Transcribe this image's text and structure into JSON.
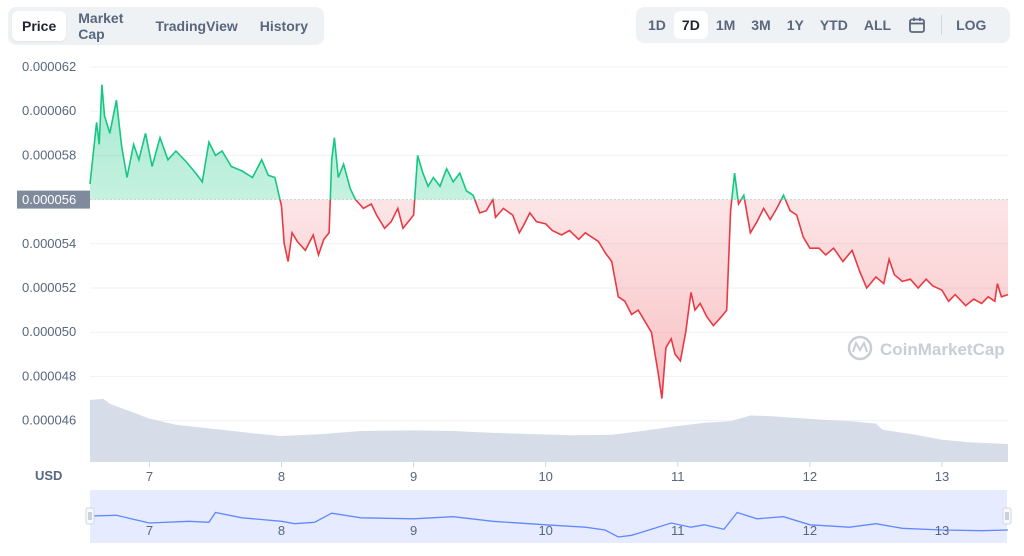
{
  "tabs": [
    {
      "label": "Price",
      "active": true
    },
    {
      "label": "Market Cap",
      "active": false
    },
    {
      "label": "TradingView",
      "active": false
    },
    {
      "label": "History",
      "active": false
    }
  ],
  "ranges": [
    {
      "label": "1D",
      "active": false
    },
    {
      "label": "7D",
      "active": true
    },
    {
      "label": "1M",
      "active": false
    },
    {
      "label": "3M",
      "active": false
    },
    {
      "label": "1Y",
      "active": false
    },
    {
      "label": "YTD",
      "active": false
    },
    {
      "label": "ALL",
      "active": false
    }
  ],
  "calendar_icon": "calendar-icon",
  "log_label": "LOG",
  "currency_label": "USD",
  "watermark": "CoinMarketCap",
  "colors": {
    "up": "#16c784",
    "down": "#ea3943",
    "volume": "#cfd6e4",
    "navigator_line": "#6188ff",
    "navigator_fill": "#e6ebff",
    "reference": "#808a9d"
  },
  "chart_data": {
    "type": "line",
    "currency": "USD",
    "reference_price_label": "0.000056",
    "reference_price": 5.6e-05,
    "ylim": [
      4.45e-05,
      6.2e-05
    ],
    "y_ticks": [
      "0.000062",
      "0.000060",
      "0.000058",
      "0.000056",
      "0.000054",
      "0.000052",
      "0.000050",
      "0.000048",
      "0.000046"
    ],
    "xlim": [
      6.55,
      13.5
    ],
    "x_ticks": [
      {
        "value": 7,
        "label": "7"
      },
      {
        "value": 8,
        "label": "8"
      },
      {
        "value": 9,
        "label": "9"
      },
      {
        "value": 10,
        "label": "10"
      },
      {
        "value": 11,
        "label": "11"
      },
      {
        "value": 12,
        "label": "12"
      },
      {
        "value": 13,
        "label": "13"
      }
    ],
    "series": [
      {
        "kind": "price",
        "points": [
          [
            6.55,
            5.67e-05
          ],
          [
            6.6,
            5.95e-05
          ],
          [
            6.62,
            5.85e-05
          ],
          [
            6.64,
            6.12e-05
          ],
          [
            6.66,
            5.98e-05
          ],
          [
            6.7,
            5.9e-05
          ],
          [
            6.75,
            6.05e-05
          ],
          [
            6.79,
            5.84e-05
          ],
          [
            6.83,
            5.7e-05
          ],
          [
            6.88,
            5.85e-05
          ],
          [
            6.92,
            5.78e-05
          ],
          [
            6.97,
            5.9e-05
          ],
          [
            7.02,
            5.75e-05
          ],
          [
            7.08,
            5.88e-05
          ],
          [
            7.14,
            5.78e-05
          ],
          [
            7.2,
            5.82e-05
          ],
          [
            7.28,
            5.77e-05
          ],
          [
            7.35,
            5.72e-05
          ],
          [
            7.4,
            5.68e-05
          ],
          [
            7.45,
            5.86e-05
          ],
          [
            7.5,
            5.8e-05
          ],
          [
            7.55,
            5.82e-05
          ],
          [
            7.62,
            5.75e-05
          ],
          [
            7.7,
            5.73e-05
          ],
          [
            7.78,
            5.7e-05
          ],
          [
            7.85,
            5.78e-05
          ],
          [
            7.9,
            5.71e-05
          ],
          [
            7.95,
            5.7e-05
          ],
          [
            8.0,
            5.57e-05
          ],
          [
            8.02,
            5.4e-05
          ],
          [
            8.05,
            5.32e-05
          ],
          [
            8.08,
            5.45e-05
          ],
          [
            8.12,
            5.41e-05
          ],
          [
            8.18,
            5.37e-05
          ],
          [
            8.24,
            5.44e-05
          ],
          [
            8.28,
            5.35e-05
          ],
          [
            8.32,
            5.42e-05
          ],
          [
            8.36,
            5.45e-05
          ],
          [
            8.38,
            5.78e-05
          ],
          [
            8.4,
            5.88e-05
          ],
          [
            8.43,
            5.7e-05
          ],
          [
            8.47,
            5.76e-05
          ],
          [
            8.52,
            5.65e-05
          ],
          [
            8.56,
            5.6e-05
          ],
          [
            8.62,
            5.56e-05
          ],
          [
            8.68,
            5.58e-05
          ],
          [
            8.72,
            5.53e-05
          ],
          [
            8.78,
            5.47e-05
          ],
          [
            8.83,
            5.5e-05
          ],
          [
            8.88,
            5.56e-05
          ],
          [
            8.92,
            5.47e-05
          ],
          [
            9.0,
            5.53e-05
          ],
          [
            9.03,
            5.8e-05
          ],
          [
            9.07,
            5.72e-05
          ],
          [
            9.11,
            5.66e-05
          ],
          [
            9.15,
            5.7e-05
          ],
          [
            9.2,
            5.66e-05
          ],
          [
            9.25,
            5.74e-05
          ],
          [
            9.3,
            5.68e-05
          ],
          [
            9.35,
            5.72e-05
          ],
          [
            9.4,
            5.64e-05
          ],
          [
            9.45,
            5.62e-05
          ],
          [
            9.5,
            5.54e-05
          ],
          [
            9.55,
            5.55e-05
          ],
          [
            9.6,
            5.6e-05
          ],
          [
            9.62,
            5.52e-05
          ],
          [
            9.68,
            5.56e-05
          ],
          [
            9.75,
            5.53e-05
          ],
          [
            9.8,
            5.45e-05
          ],
          [
            9.83,
            5.48e-05
          ],
          [
            9.88,
            5.54e-05
          ],
          [
            9.93,
            5.5e-05
          ],
          [
            10.0,
            5.49e-05
          ],
          [
            10.05,
            5.46e-05
          ],
          [
            10.12,
            5.44e-05
          ],
          [
            10.18,
            5.46e-05
          ],
          [
            10.25,
            5.42e-05
          ],
          [
            10.3,
            5.45e-05
          ],
          [
            10.35,
            5.43e-05
          ],
          [
            10.4,
            5.41e-05
          ],
          [
            10.45,
            5.36e-05
          ],
          [
            10.5,
            5.32e-05
          ],
          [
            10.55,
            5.16e-05
          ],
          [
            10.6,
            5.14e-05
          ],
          [
            10.65,
            5.08e-05
          ],
          [
            10.7,
            5.1e-05
          ],
          [
            10.75,
            5.05e-05
          ],
          [
            10.8,
            5e-05
          ],
          [
            10.85,
            4.82e-05
          ],
          [
            10.88,
            4.7e-05
          ],
          [
            10.91,
            4.93e-05
          ],
          [
            10.95,
            4.97e-05
          ],
          [
            10.98,
            4.9e-05
          ],
          [
            11.02,
            4.87e-05
          ],
          [
            11.06,
            5e-05
          ],
          [
            11.1,
            5.18e-05
          ],
          [
            11.13,
            5.1e-05
          ],
          [
            11.17,
            5.13e-05
          ],
          [
            11.22,
            5.07e-05
          ],
          [
            11.27,
            5.03e-05
          ],
          [
            11.33,
            5.07e-05
          ],
          [
            11.37,
            5.1e-05
          ],
          [
            11.4,
            5.55e-05
          ],
          [
            11.43,
            5.72e-05
          ],
          [
            11.46,
            5.58e-05
          ],
          [
            11.5,
            5.62e-05
          ],
          [
            11.55,
            5.45e-05
          ],
          [
            11.6,
            5.5e-05
          ],
          [
            11.65,
            5.56e-05
          ],
          [
            11.7,
            5.51e-05
          ],
          [
            11.75,
            5.56e-05
          ],
          [
            11.8,
            5.62e-05
          ],
          [
            11.85,
            5.55e-05
          ],
          [
            11.9,
            5.53e-05
          ],
          [
            11.95,
            5.43e-05
          ],
          [
            12.0,
            5.38e-05
          ],
          [
            12.07,
            5.38e-05
          ],
          [
            12.12,
            5.35e-05
          ],
          [
            12.18,
            5.38e-05
          ],
          [
            12.25,
            5.32e-05
          ],
          [
            12.32,
            5.37e-05
          ],
          [
            12.38,
            5.27e-05
          ],
          [
            12.43,
            5.2e-05
          ],
          [
            12.5,
            5.25e-05
          ],
          [
            12.56,
            5.22e-05
          ],
          [
            12.6,
            5.33e-05
          ],
          [
            12.64,
            5.26e-05
          ],
          [
            12.7,
            5.23e-05
          ],
          [
            12.76,
            5.24e-05
          ],
          [
            12.82,
            5.2e-05
          ],
          [
            12.88,
            5.24e-05
          ],
          [
            12.93,
            5.21e-05
          ],
          [
            13.0,
            5.19e-05
          ],
          [
            13.05,
            5.14e-05
          ],
          [
            13.1,
            5.17e-05
          ],
          [
            13.18,
            5.12e-05
          ],
          [
            13.24,
            5.15e-05
          ],
          [
            13.3,
            5.13e-05
          ],
          [
            13.35,
            5.16e-05
          ],
          [
            13.4,
            5.14e-05
          ],
          [
            13.42,
            5.22e-05
          ],
          [
            13.45,
            5.16e-05
          ],
          [
            13.5,
            5.17e-05
          ]
        ]
      },
      {
        "kind": "volume",
        "points": [
          [
            6.55,
            1.0
          ],
          [
            6.65,
            1.02
          ],
          [
            6.7,
            0.94
          ],
          [
            6.8,
            0.86
          ],
          [
            6.9,
            0.78
          ],
          [
            7.0,
            0.7
          ],
          [
            7.2,
            0.6
          ],
          [
            7.5,
            0.53
          ],
          [
            7.8,
            0.46
          ],
          [
            8.0,
            0.42
          ],
          [
            8.3,
            0.45
          ],
          [
            8.6,
            0.5
          ],
          [
            9.0,
            0.51
          ],
          [
            9.3,
            0.5
          ],
          [
            9.6,
            0.47
          ],
          [
            9.9,
            0.45
          ],
          [
            10.2,
            0.43
          ],
          [
            10.5,
            0.44
          ],
          [
            10.8,
            0.52
          ],
          [
            11.0,
            0.58
          ],
          [
            11.2,
            0.63
          ],
          [
            11.4,
            0.66
          ],
          [
            11.55,
            0.75
          ],
          [
            11.7,
            0.74
          ],
          [
            11.9,
            0.71
          ],
          [
            12.1,
            0.68
          ],
          [
            12.3,
            0.66
          ],
          [
            12.5,
            0.62
          ],
          [
            12.55,
            0.52
          ],
          [
            12.8,
            0.44
          ],
          [
            13.0,
            0.36
          ],
          [
            13.2,
            0.32
          ],
          [
            13.5,
            0.29
          ]
        ]
      },
      {
        "kind": "navigator",
        "points": [
          [
            6.55,
            0.6
          ],
          [
            6.75,
            0.62
          ],
          [
            7.0,
            0.4
          ],
          [
            7.3,
            0.45
          ],
          [
            7.45,
            0.42
          ],
          [
            7.5,
            0.7
          ],
          [
            7.7,
            0.55
          ],
          [
            8.0,
            0.45
          ],
          [
            8.1,
            0.38
          ],
          [
            8.25,
            0.42
          ],
          [
            8.38,
            0.68
          ],
          [
            8.6,
            0.55
          ],
          [
            9.0,
            0.52
          ],
          [
            9.3,
            0.58
          ],
          [
            9.6,
            0.45
          ],
          [
            10.0,
            0.35
          ],
          [
            10.3,
            0.28
          ],
          [
            10.45,
            0.2
          ],
          [
            10.55,
            0.0
          ],
          [
            10.65,
            0.05
          ],
          [
            10.8,
            0.22
          ],
          [
            10.95,
            0.4
          ],
          [
            11.1,
            0.28
          ],
          [
            11.2,
            0.35
          ],
          [
            11.35,
            0.22
          ],
          [
            11.45,
            0.7
          ],
          [
            11.6,
            0.52
          ],
          [
            11.8,
            0.58
          ],
          [
            12.0,
            0.35
          ],
          [
            12.3,
            0.28
          ],
          [
            12.5,
            0.38
          ],
          [
            12.7,
            0.25
          ],
          [
            13.0,
            0.2
          ],
          [
            13.3,
            0.18
          ],
          [
            13.5,
            0.2
          ]
        ]
      }
    ]
  }
}
